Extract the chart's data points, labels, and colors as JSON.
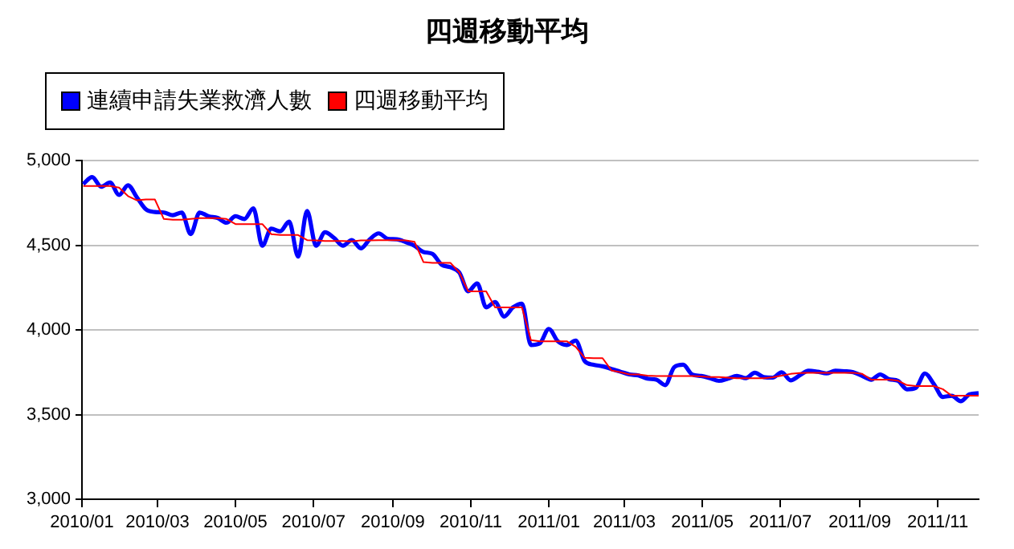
{
  "chart_data": {
    "type": "line",
    "title": "四週移動平均",
    "legend": "top left",
    "grid": "y",
    "marker": "none",
    "line_style": "solid",
    "x": [
      "2010-01-02",
      "2010-01-09",
      "2010-01-16",
      "2010-01-23",
      "2010-01-30",
      "2010-02-06",
      "2010-02-13",
      "2010-02-20",
      "2010-02-27",
      "2010-03-06",
      "2010-03-13",
      "2010-03-20",
      "2010-03-27",
      "2010-04-03",
      "2010-04-10",
      "2010-04-17",
      "2010-04-24",
      "2010-05-01",
      "2010-05-08",
      "2010-05-15",
      "2010-05-22",
      "2010-05-29",
      "2010-06-05",
      "2010-06-12",
      "2010-06-19",
      "2010-06-26",
      "2010-07-03",
      "2010-07-10",
      "2010-07-17",
      "2010-07-24",
      "2010-07-31",
      "2010-08-07",
      "2010-08-14",
      "2010-08-21",
      "2010-08-28",
      "2010-09-04",
      "2010-09-11",
      "2010-09-18",
      "2010-09-25",
      "2010-10-02",
      "2010-10-09",
      "2010-10-16",
      "2010-10-23",
      "2010-10-30",
      "2010-11-06",
      "2010-11-13",
      "2010-11-20",
      "2010-11-27",
      "2010-12-04",
      "2010-12-11",
      "2010-12-18",
      "2010-12-25",
      "2011-01-01",
      "2011-01-08",
      "2011-01-15",
      "2011-01-22",
      "2011-01-29",
      "2011-02-05",
      "2011-02-12",
      "2011-02-19",
      "2011-02-26",
      "2011-03-05",
      "2011-03-12",
      "2011-03-19",
      "2011-03-26",
      "2011-04-02",
      "2011-04-09",
      "2011-04-16",
      "2011-04-23",
      "2011-04-30",
      "2011-05-07",
      "2011-05-14",
      "2011-05-21",
      "2011-05-28",
      "2011-06-04",
      "2011-06-11",
      "2011-06-18",
      "2011-06-25",
      "2011-07-02",
      "2011-07-09",
      "2011-07-16",
      "2011-07-23",
      "2011-07-30",
      "2011-08-06",
      "2011-08-13",
      "2011-08-20",
      "2011-08-27",
      "2011-09-03",
      "2011-09-10",
      "2011-09-17",
      "2011-09-24",
      "2011-10-01",
      "2011-10-08",
      "2011-10-15",
      "2011-10-22",
      "2011-10-29",
      "2011-11-05",
      "2011-11-12",
      "2011-11-19",
      "2011-11-26",
      "2011-12-03"
    ],
    "series": [
      {
        "name": "連續申請失業救濟人數",
        "color": "#0000ff",
        "values": [
          4861,
          4902,
          4845,
          4870,
          4797,
          4854,
          4782,
          4712,
          4696,
          4693,
          4677,
          4693,
          4566,
          4693,
          4671,
          4661,
          4633,
          4671,
          4655,
          4718,
          4497,
          4598,
          4582,
          4639,
          4433,
          4702,
          4497,
          4576,
          4544,
          4497,
          4530,
          4481,
          4535,
          4570,
          4538,
          4535,
          4519,
          4497,
          4460,
          4449,
          4386,
          4370,
          4339,
          4228,
          4275,
          4133,
          4164,
          4079,
          4133,
          4155,
          3911,
          3921,
          4006,
          3933,
          3911,
          3937,
          3816,
          3794,
          3785,
          3769,
          3753,
          3737,
          3731,
          3712,
          3706,
          3674,
          3780,
          3794,
          3737,
          3728,
          3715,
          3699,
          3712,
          3728,
          3715,
          3747,
          3721,
          3718,
          3750,
          3702,
          3731,
          3759,
          3753,
          3743,
          3759,
          3756,
          3750,
          3728,
          3706,
          3737,
          3709,
          3699,
          3649,
          3658,
          3743,
          3680,
          3604,
          3611,
          3579,
          3620,
          3626
        ]
      },
      {
        "name": "四週移動平均",
        "color": "#ff0000",
        "values": [
          4850,
          4850,
          4850,
          4850,
          4840,
          4790,
          4765,
          4770,
          4770,
          4655,
          4650,
          4650,
          4655,
          4660,
          4660,
          4660,
          4655,
          4625,
          4625,
          4625,
          4625,
          4565,
          4560,
          4560,
          4560,
          4530,
          4528,
          4525,
          4525,
          4525,
          4522,
          4528,
          4528,
          4530,
          4530,
          4530,
          4528,
          4520,
          4400,
          4396,
          4396,
          4396,
          4339,
          4228,
          4228,
          4228,
          4133,
          4133,
          4133,
          4133,
          3940,
          3933,
          3933,
          3933,
          3933,
          3900,
          3835,
          3833,
          3833,
          3760,
          3750,
          3737,
          3737,
          3730,
          3728,
          3728,
          3728,
          3728,
          3728,
          3725,
          3721,
          3721,
          3718,
          3715,
          3715,
          3715,
          3715,
          3720,
          3730,
          3740,
          3745,
          3747,
          3747,
          3747,
          3747,
          3747,
          3747,
          3740,
          3706,
          3706,
          3706,
          3700,
          3674,
          3668,
          3668,
          3668,
          3650,
          3611,
          3611,
          3611,
          3611
        ]
      }
    ],
    "xlim": [
      "2010-01-01",
      "2011-12-03"
    ],
    "xticks": [
      {
        "value": "2010-01-01",
        "label": "2010/01"
      },
      {
        "value": "2010-03-01",
        "label": "2010/03"
      },
      {
        "value": "2010-05-01",
        "label": "2010/05"
      },
      {
        "value": "2010-07-01",
        "label": "2010/07"
      },
      {
        "value": "2010-09-01",
        "label": "2010/09"
      },
      {
        "value": "2010-11-01",
        "label": "2010/11"
      },
      {
        "value": "2011-01-01",
        "label": "2011/01"
      },
      {
        "value": "2011-03-01",
        "label": "2011/03"
      },
      {
        "value": "2011-05-01",
        "label": "2011/05"
      },
      {
        "value": "2011-07-01",
        "label": "2011/07"
      },
      {
        "value": "2011-09-01",
        "label": "2011/09"
      },
      {
        "value": "2011-11-01",
        "label": "2011/11"
      }
    ],
    "ylim": [
      3000,
      5000
    ],
    "yticks": [
      {
        "value": 3000,
        "label": "3,000"
      },
      {
        "value": 3500,
        "label": "3,500"
      },
      {
        "value": 4000,
        "label": "4,000"
      },
      {
        "value": 4500,
        "label": "4,500"
      },
      {
        "value": 5000,
        "label": "5,000"
      }
    ]
  }
}
